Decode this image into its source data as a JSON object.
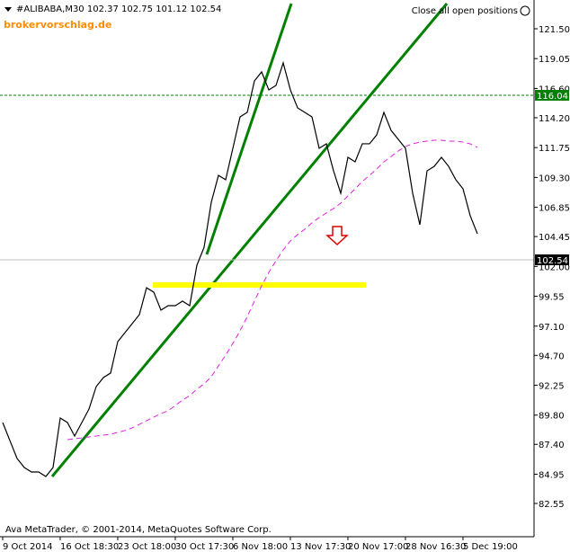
{
  "chart_data": {
    "type": "line",
    "title": "#ALIBABA,M30  102.37 102.75 101.12 102.54",
    "watermark": "brokervorschlag.de",
    "button": "Close all open positions",
    "footer": "Ava MetaTrader, © 2001-2014, MetaQuotes Software Corp.",
    "categories": [
      "9 Oct 2014",
      null,
      null,
      null,
      null,
      null,
      null,
      null,
      "16 Oct 18:30",
      null,
      null,
      null,
      null,
      null,
      null,
      null,
      "23 Oct 18:00",
      null,
      null,
      null,
      null,
      null,
      null,
      null,
      "30 Oct 17:30",
      null,
      null,
      null,
      null,
      null,
      null,
      null,
      "6 Nov 18:00",
      null,
      null,
      null,
      null,
      null,
      null,
      null,
      "13 Nov 17:30",
      null,
      null,
      null,
      null,
      null,
      null,
      null,
      "20 Nov 17:00",
      null,
      null,
      null,
      null,
      null,
      null,
      null,
      "28 Nov 16:30",
      null,
      null,
      null,
      null,
      null,
      null,
      null,
      "5 Dec 19:00",
      null,
      null
    ],
    "series": [
      {
        "color": "#000000",
        "values": [
          89.19,
          87.71,
          86.24,
          85.5,
          85.13,
          85.13,
          84.76,
          85.5,
          89.56,
          89.19,
          88.08,
          89.19,
          90.3,
          92.14,
          92.88,
          93.25,
          95.83,
          96.57,
          97.3,
          98.04,
          100.25,
          99.89,
          98.41,
          98.78,
          98.78,
          99.15,
          98.78,
          102.1,
          103.57,
          107.26,
          109.47,
          109.11,
          111.69,
          114.27,
          114.64,
          117.22,
          117.96,
          116.48,
          116.85,
          118.7,
          116.48,
          115.01,
          114.64,
          114.27,
          111.69,
          112.06,
          109.84,
          108.0,
          110.95,
          110.58,
          112.06,
          112.06,
          112.79,
          114.64,
          113.16,
          112.43,
          111.69,
          108.0,
          105.42,
          109.84,
          110.21,
          110.95,
          110.21,
          109.11,
          108.37,
          106.16,
          104.68
        ]
      },
      {
        "color": "#e020e0",
        "dashed": true,
        "values": [
          null,
          null,
          null,
          null,
          null,
          null,
          null,
          null,
          null,
          87.79,
          87.86,
          87.93,
          88.01,
          88.08,
          88.16,
          88.23,
          88.38,
          88.53,
          88.75,
          89.04,
          89.34,
          89.63,
          89.93,
          90.15,
          90.59,
          91.03,
          91.4,
          91.92,
          92.36,
          92.95,
          93.84,
          94.72,
          95.68,
          96.71,
          97.89,
          99.15,
          100.4,
          101.51,
          102.47,
          103.35,
          104.09,
          104.61,
          105.05,
          105.57,
          106.01,
          106.38,
          106.75,
          107.19,
          107.78,
          108.37,
          108.96,
          109.47,
          109.99,
          110.58,
          111.02,
          111.47,
          111.84,
          112.06,
          112.2,
          112.28,
          112.35,
          112.35,
          112.28,
          112.28,
          112.2,
          112.06,
          111.76
        ]
      }
    ],
    "levels": [
      {
        "value": 116.04,
        "color": "#008000",
        "dashed": true
      },
      {
        "value": 102.54,
        "color": "#c0c0c0",
        "dashed": false
      }
    ],
    "ylim": [
      79.82,
      123.86
    ],
    "yticks": [
      {
        "value": 121.5,
        "label": "121.50"
      },
      119.05,
      {
        "value": 116.6,
        "label": "116.60"
      },
      {
        "value": 114.2,
        "label": "114.20"
      },
      111.75,
      {
        "value": 109.3,
        "label": "109.30"
      },
      106.85,
      104.45,
      {
        "value": 102,
        "label": "102.00"
      },
      99.55,
      {
        "value": 97.1,
        "label": "97.10"
      },
      {
        "value": 94.7,
        "label": "94.70"
      },
      92.25,
      {
        "value": 89.8,
        "label": "89.80"
      },
      {
        "value": 87.4,
        "label": "87.40"
      },
      84.95,
      82.55
    ]
  }
}
